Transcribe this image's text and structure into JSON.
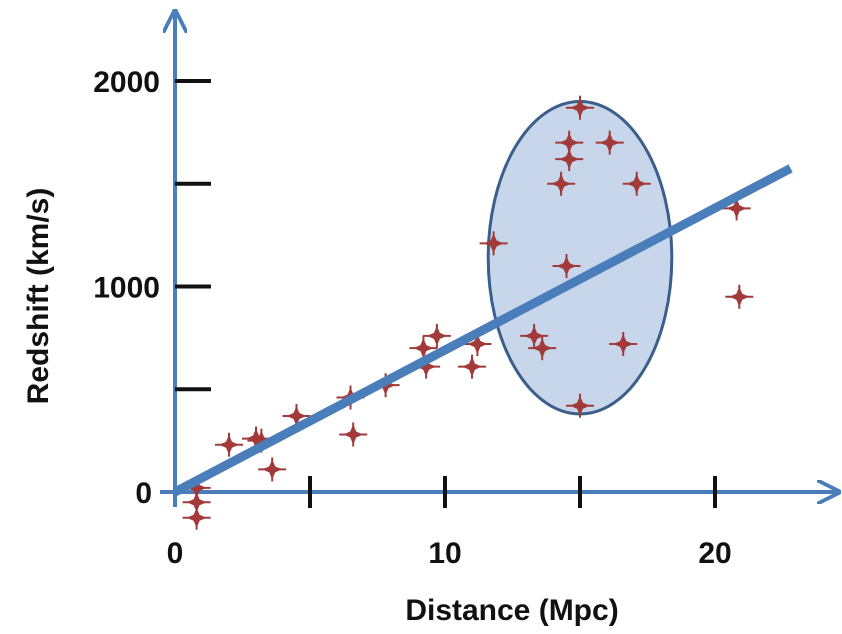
{
  "chart_data": {
    "type": "scatter",
    "title": "",
    "xlabel": "Distance (Mpc)",
    "ylabel": "Redshift (km/s)",
    "xlim": [
      0,
      24.5
    ],
    "ylim": [
      -200,
      2270
    ],
    "grid": false,
    "x_ticks": [
      {
        "value": 0,
        "label": "0"
      },
      {
        "value": 5,
        "label": ""
      },
      {
        "value": 10,
        "label": "10"
      },
      {
        "value": 15,
        "label": ""
      },
      {
        "value": 20,
        "label": "20"
      }
    ],
    "y_ticks": [
      {
        "value": 0,
        "label": "0"
      },
      {
        "value": 500,
        "label": ""
      },
      {
        "value": 1000,
        "label": "1000"
      },
      {
        "value": 1500,
        "label": ""
      },
      {
        "value": 2000,
        "label": "2000"
      }
    ],
    "points": [
      {
        "x": 0.8,
        "y": 20
      },
      {
        "x": 0.8,
        "y": -50
      },
      {
        "x": 0.8,
        "y": -125
      },
      {
        "x": 2.0,
        "y": 230
      },
      {
        "x": 3.0,
        "y": 260
      },
      {
        "x": 3.2,
        "y": 250
      },
      {
        "x": 3.6,
        "y": 110
      },
      {
        "x": 4.5,
        "y": 370
      },
      {
        "x": 6.5,
        "y": 460
      },
      {
        "x": 6.6,
        "y": 280
      },
      {
        "x": 7.8,
        "y": 520
      },
      {
        "x": 9.2,
        "y": 700
      },
      {
        "x": 9.3,
        "y": 610
      },
      {
        "x": 9.7,
        "y": 760
      },
      {
        "x": 11.0,
        "y": 610
      },
      {
        "x": 11.2,
        "y": 720
      },
      {
        "x": 11.8,
        "y": 1210
      },
      {
        "x": 13.3,
        "y": 760
      },
      {
        "x": 13.6,
        "y": 700
      },
      {
        "x": 14.3,
        "y": 1500
      },
      {
        "x": 14.5,
        "y": 1100
      },
      {
        "x": 14.6,
        "y": 1620
      },
      {
        "x": 14.6,
        "y": 1700
      },
      {
        "x": 15.0,
        "y": 1870
      },
      {
        "x": 15.0,
        "y": 420
      },
      {
        "x": 16.1,
        "y": 1700
      },
      {
        "x": 16.6,
        "y": 720
      },
      {
        "x": 17.1,
        "y": 1500
      },
      {
        "x": 20.8,
        "y": 1380
      },
      {
        "x": 20.9,
        "y": 950
      }
    ],
    "fit_line": {
      "x": [
        0,
        22.8
      ],
      "y": [
        0,
        1575
      ]
    },
    "ellipse": {
      "cx": 15.0,
      "cy": 1140,
      "rx": 3.4,
      "ry": 760
    },
    "colors": {
      "axis": "#4a7ebb",
      "fit_line": "#4a7ebb",
      "ellipse_fill": "#c7d6ea",
      "ellipse_stroke": "#3b5f8a",
      "marker": "#a23a3a",
      "tick_marks": "#111111"
    }
  }
}
